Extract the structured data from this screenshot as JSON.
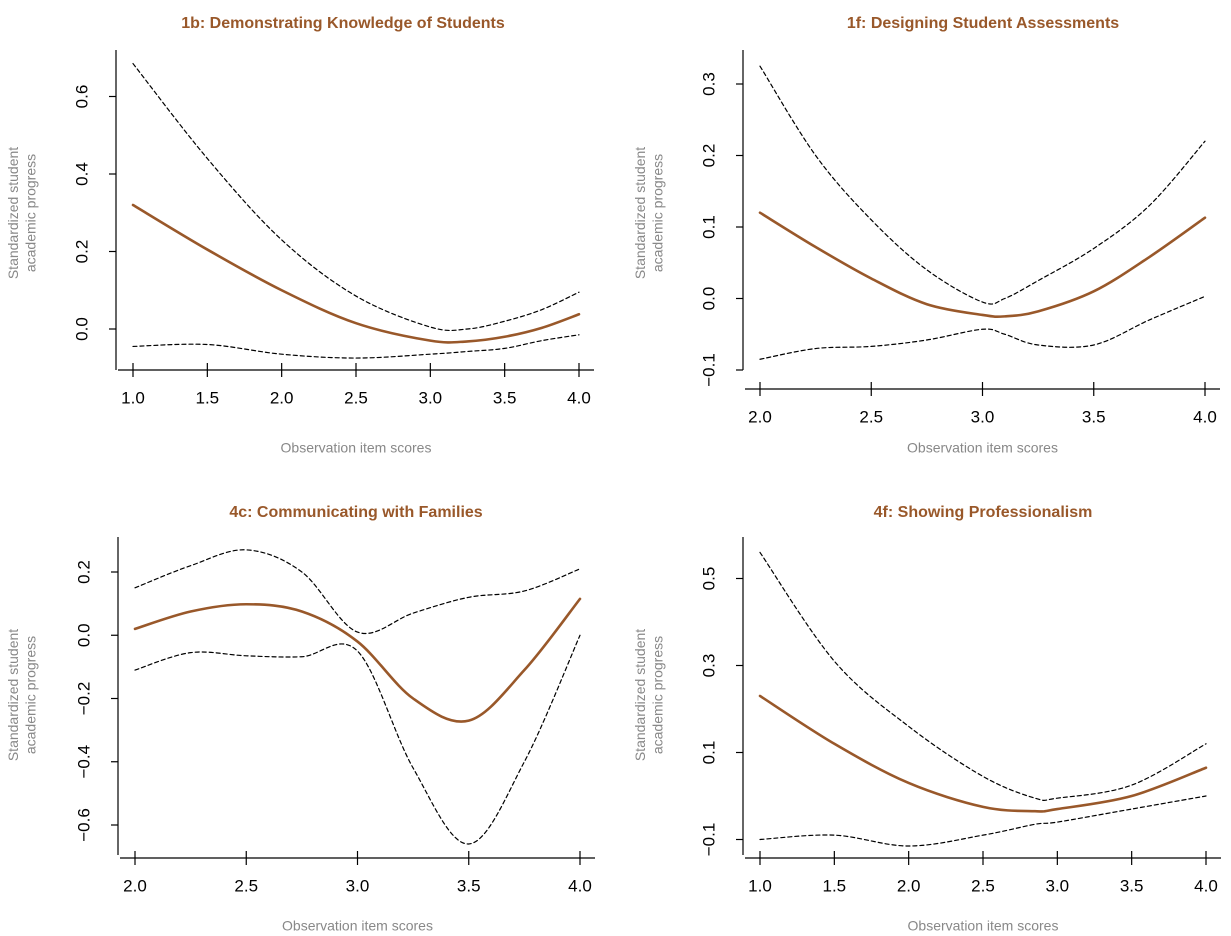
{
  "colors": {
    "fit_line": "#99582a",
    "confidence_line": "#000000",
    "title": "#99582a",
    "axis_label": "#888888",
    "tick_label": "#000000"
  },
  "chart_data": [
    {
      "type": "line",
      "title": "1b: Demonstrating Knowledge of Students",
      "xlabel": "Observation item scores",
      "ylabel": "Standardized student academic progress",
      "ylabel_lines": [
        "Standardized student",
        "academic progress"
      ],
      "xlim": [
        1.0,
        4.0
      ],
      "ylim": [
        -0.1,
        0.7
      ],
      "xticks": [
        1.0,
        1.5,
        2.0,
        2.5,
        3.0,
        3.5,
        4.0
      ],
      "xtick_labels": [
        "1.0",
        "1.5",
        "2.0",
        "2.5",
        "3.0",
        "3.5",
        "4.0"
      ],
      "yticks": [
        0.0,
        0.2,
        0.4,
        0.6
      ],
      "ytick_labels": [
        "0.0",
        "0.2",
        "0.4",
        "0.6"
      ],
      "x": [
        1.0,
        1.5,
        2.0,
        2.5,
        3.0,
        3.25,
        3.5,
        3.75,
        4.0
      ],
      "series": [
        {
          "role": "estimate",
          "values": [
            0.32,
            0.205,
            0.1,
            0.015,
            -0.03,
            -0.032,
            -0.02,
            0.003,
            0.038
          ]
        },
        {
          "role": "upper",
          "values": [
            0.685,
            0.44,
            0.23,
            0.085,
            0.005,
            0.0,
            0.02,
            0.05,
            0.095
          ]
        },
        {
          "role": "lower",
          "values": [
            -0.045,
            -0.04,
            -0.065,
            -0.075,
            -0.065,
            -0.058,
            -0.05,
            -0.03,
            -0.015
          ]
        }
      ]
    },
    {
      "type": "line",
      "title": "1f: Designing Student Assessments",
      "xlabel": "Observation item scores",
      "ylabel": "Standardized student academic progress",
      "ylabel_lines": [
        "Standardized student",
        "academic progress"
      ],
      "xlim": [
        2.0,
        4.0
      ],
      "ylim": [
        -0.1,
        0.35
      ],
      "xticks": [
        2.0,
        2.5,
        3.0,
        3.5,
        4.0
      ],
      "xtick_labels": [
        "2.0",
        "2.5",
        "3.0",
        "3.5",
        "4.0"
      ],
      "yticks": [
        -0.1,
        0.0,
        0.1,
        0.2,
        0.3
      ],
      "ytick_labels": [
        "−0.1",
        "0.0",
        "0.1",
        "0.2",
        "0.3"
      ],
      "x": [
        2.0,
        2.25,
        2.5,
        2.75,
        3.0,
        3.1,
        3.25,
        3.5,
        3.75,
        4.0
      ],
      "series": [
        {
          "role": "estimate",
          "values": [
            0.12,
            0.072,
            0.028,
            -0.008,
            -0.023,
            -0.025,
            -0.018,
            0.01,
            0.058,
            0.113
          ]
        },
        {
          "role": "upper",
          "values": [
            0.325,
            0.2,
            0.11,
            0.04,
            -0.005,
            0.0,
            0.025,
            0.07,
            0.13,
            0.22
          ]
        },
        {
          "role": "lower",
          "values": [
            -0.085,
            -0.07,
            -0.067,
            -0.058,
            -0.043,
            -0.05,
            -0.065,
            -0.065,
            -0.03,
            0.003
          ]
        }
      ]
    },
    {
      "type": "line",
      "title": "4c: Communicating with Families",
      "xlabel": "Observation item scores",
      "ylabel": "Standardized student academic progress",
      "ylabel_lines": [
        "Standardized student",
        "academic progress"
      ],
      "xlim": [
        2.0,
        4.0
      ],
      "ylim": [
        -0.72,
        0.3
      ],
      "xticks": [
        2.0,
        2.5,
        3.0,
        3.5,
        4.0
      ],
      "xtick_labels": [
        "2.0",
        "2.5",
        "3.0",
        "3.5",
        "4.0"
      ],
      "yticks": [
        -0.6,
        -0.4,
        -0.2,
        0.0,
        0.2
      ],
      "ytick_labels": [
        "−0.6",
        "−0.4",
        "−0.2",
        "0.0",
        "0.2"
      ],
      "x": [
        2.0,
        2.25,
        2.5,
        2.75,
        3.0,
        3.25,
        3.5,
        3.75,
        4.0
      ],
      "series": [
        {
          "role": "estimate",
          "values": [
            0.02,
            0.075,
            0.098,
            0.075,
            -0.02,
            -0.2,
            -0.27,
            -0.11,
            0.115
          ]
        },
        {
          "role": "upper",
          "values": [
            0.15,
            0.22,
            0.27,
            0.2,
            0.01,
            0.07,
            0.12,
            0.14,
            0.21
          ]
        },
        {
          "role": "lower",
          "values": [
            -0.11,
            -0.055,
            -0.065,
            -0.068,
            -0.05,
            -0.42,
            -0.66,
            -0.4,
            0.0
          ]
        }
      ]
    },
    {
      "type": "line",
      "title": "4f: Showing Professionalism",
      "xlabel": "Observation item scores",
      "ylabel": "Standardized student academic progress",
      "ylabel_lines": [
        "Standardized student",
        "academic progress"
      ],
      "xlim": [
        1.0,
        4.0
      ],
      "ylim": [
        -0.15,
        0.6
      ],
      "xticks": [
        1.0,
        1.5,
        2.0,
        2.5,
        3.0,
        3.5,
        4.0
      ],
      "xtick_labels": [
        "1.0",
        "1.5",
        "2.0",
        "2.5",
        "3.0",
        "3.5",
        "4.0"
      ],
      "yticks": [
        -0.1,
        0.1,
        0.3,
        0.5
      ],
      "ytick_labels": [
        "−0.1",
        "0.1",
        "0.3",
        "0.5"
      ],
      "x": [
        1.0,
        1.5,
        2.0,
        2.5,
        2.85,
        3.0,
        3.5,
        4.0
      ],
      "series": [
        {
          "role": "estimate",
          "values": [
            0.23,
            0.12,
            0.03,
            -0.025,
            -0.035,
            -0.03,
            0.0,
            0.065
          ]
        },
        {
          "role": "upper",
          "values": [
            0.56,
            0.31,
            0.16,
            0.045,
            -0.005,
            -0.005,
            0.025,
            0.12
          ]
        },
        {
          "role": "lower",
          "values": [
            -0.1,
            -0.09,
            -0.115,
            -0.09,
            -0.065,
            -0.06,
            -0.03,
            0.0
          ]
        }
      ]
    }
  ]
}
